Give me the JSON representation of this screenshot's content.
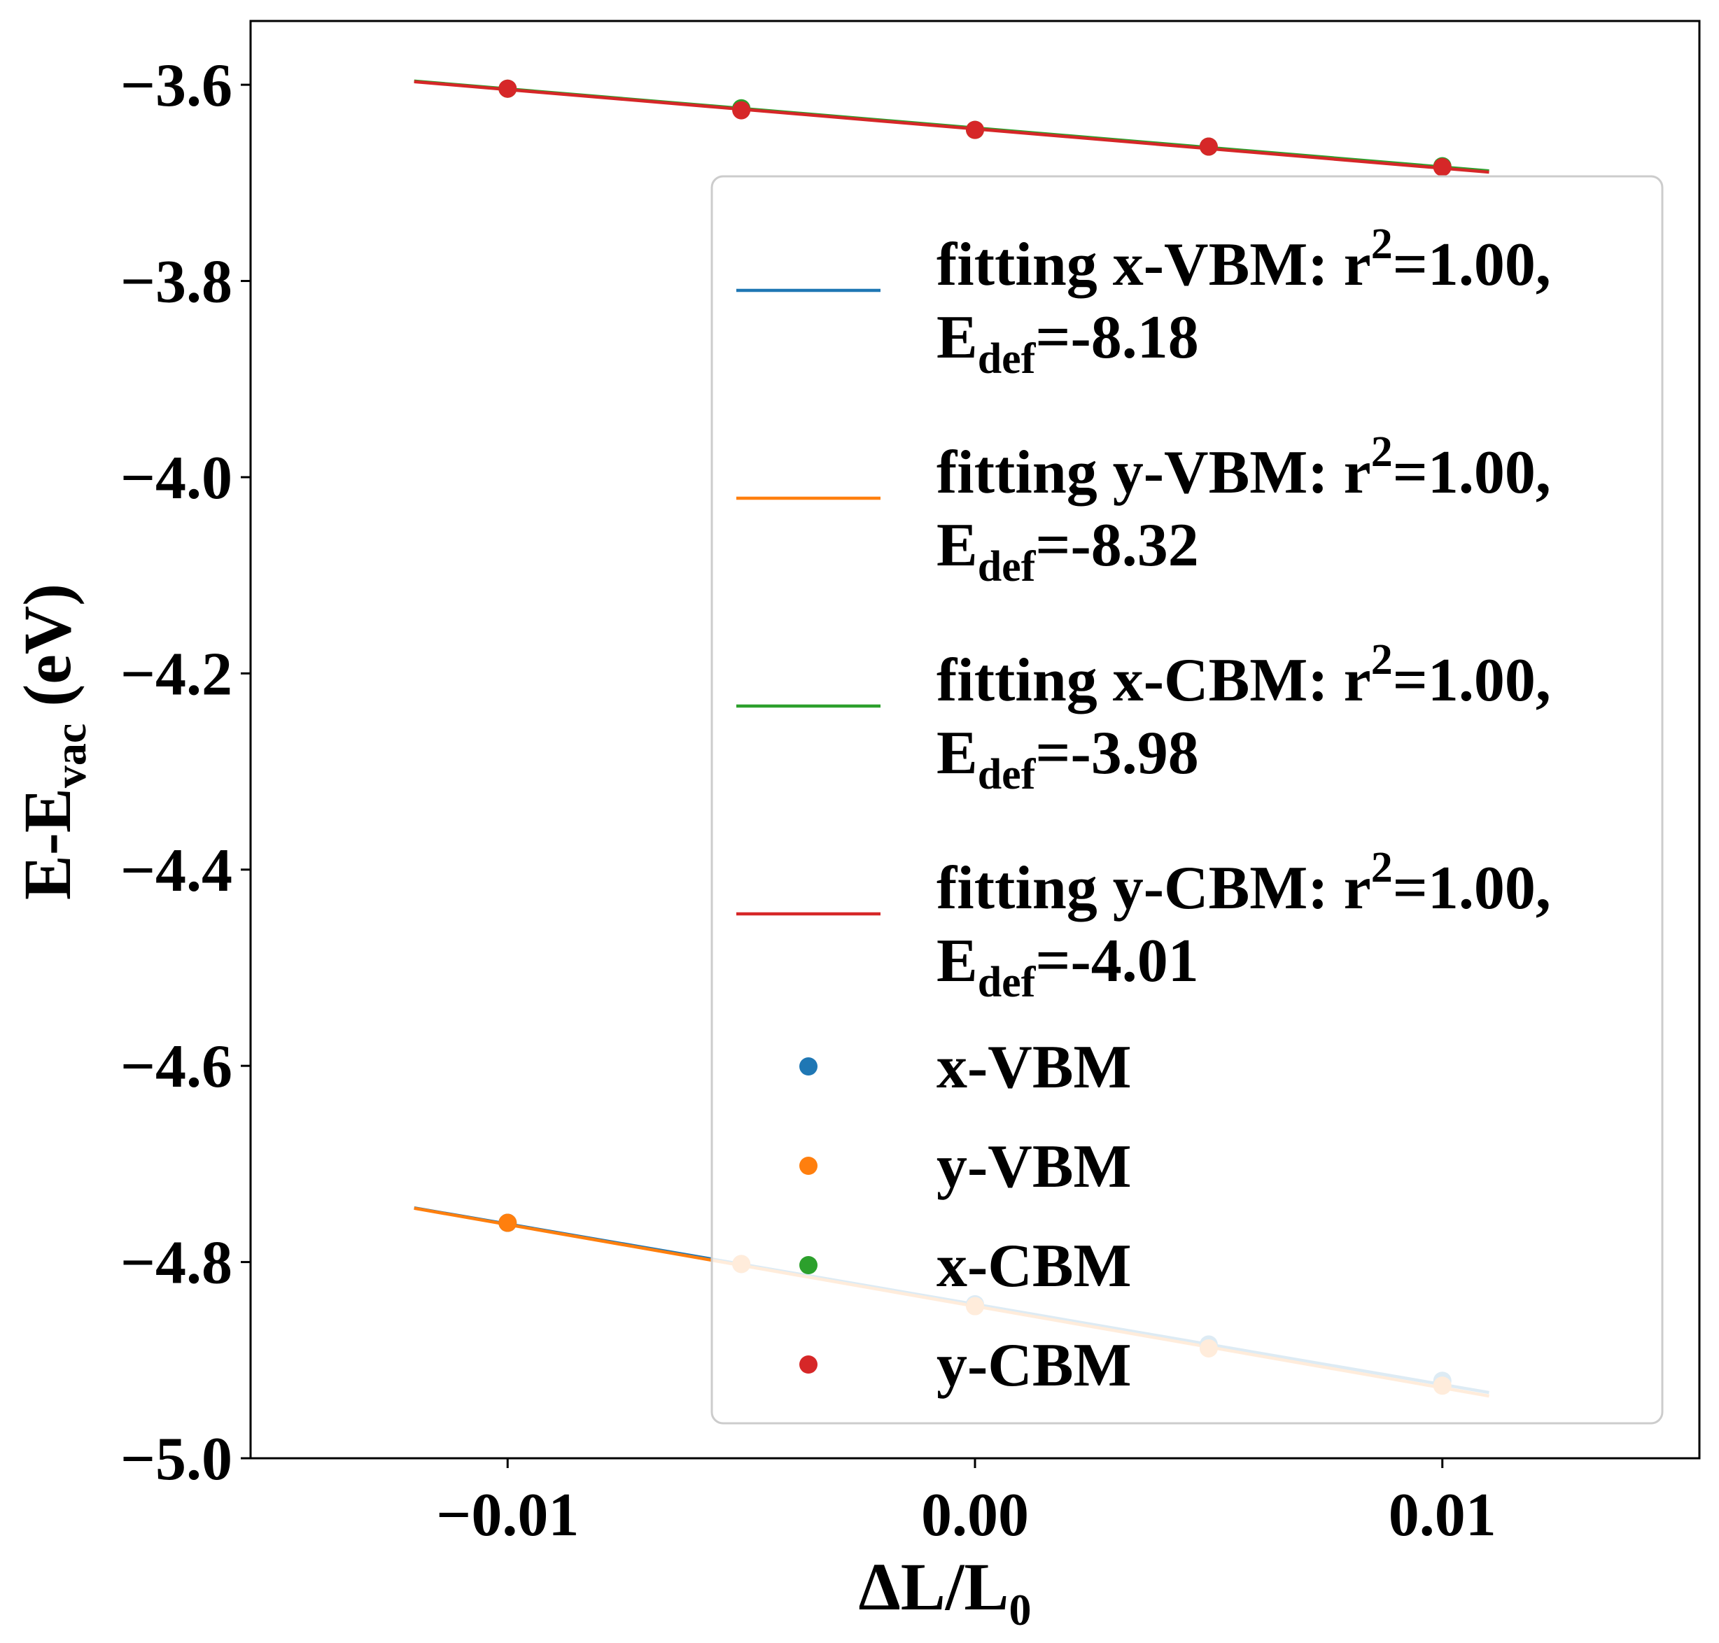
{
  "chart_data": {
    "type": "scatter",
    "xlabel": "ΔL/L",
    "xlabel_sub": "0",
    "ylabel": "E-E",
    "ylabel_sub": "vac",
    "ylabel_suffix": " (eV)",
    "xlim": [
      -0.0155,
      0.0155
    ],
    "ylim": [
      -5.0,
      -3.535
    ],
    "xticks": [
      -0.01,
      0.0,
      0.01
    ],
    "xtick_labels": [
      "−0.01",
      "0.00",
      "0.01"
    ],
    "yticks": [
      -3.6,
      -3.8,
      -4.0,
      -4.2,
      -4.4,
      -4.6,
      -4.8,
      -5.0
    ],
    "ytick_labels": [
      "−3.6",
      "−3.8",
      "−4.0",
      "−4.2",
      "−4.4",
      "−4.6",
      "−4.8",
      "−5.0"
    ],
    "grid": false,
    "legend_position": "right",
    "fit_x_range": [
      -0.012,
      0.011
    ],
    "series": [
      {
        "name": "x-VBM",
        "color": "#1f77b4",
        "x": [
          -0.01,
          -0.005,
          0.0,
          0.005,
          0.01
        ],
        "y": [
          -4.76,
          -4.802,
          -4.843,
          -4.884,
          -4.921
        ]
      },
      {
        "name": "y-VBM",
        "color": "#ff7f0e",
        "x": [
          -0.01,
          -0.005,
          0.0,
          0.005,
          0.01
        ],
        "y": [
          -4.76,
          -4.802,
          -4.845,
          -4.888,
          -4.926
        ]
      },
      {
        "name": "x-CBM",
        "color": "#2ca02c",
        "x": [
          -0.01,
          -0.005,
          0.0,
          0.005,
          0.01
        ],
        "y": [
          -3.604,
          -3.624,
          -3.646,
          -3.663,
          -3.683
        ]
      },
      {
        "name": "y-CBM",
        "color": "#d62728",
        "x": [
          -0.01,
          -0.005,
          0.0,
          0.005,
          0.01
        ],
        "y": [
          -3.604,
          -3.626,
          -3.646,
          -3.663,
          -3.684
        ]
      }
    ],
    "fits": [
      {
        "series": "x-VBM",
        "color": "#1f77b4",
        "label_line1": "fitting x-VBM: r",
        "sup": "2",
        "label_r2": "=1.00,",
        "label_line2": "E",
        "sub": "def",
        "label_edef": "=-8.18",
        "slope": -8.18,
        "intercept": -4.843
      },
      {
        "series": "y-VBM",
        "color": "#ff7f0e",
        "label_line1": "fitting y-VBM: r",
        "sup": "2",
        "label_r2": "=1.00,",
        "label_line2": "E",
        "sub": "def",
        "label_edef": "=-8.32",
        "slope": -8.32,
        "intercept": -4.845
      },
      {
        "series": "x-CBM",
        "color": "#2ca02c",
        "label_line1": "fitting x-CBM: r",
        "sup": "2",
        "label_r2": "=1.00,",
        "label_line2": "E",
        "sub": "def",
        "label_edef": "=-3.98",
        "slope": -3.98,
        "intercept": -3.644
      },
      {
        "series": "y-CBM",
        "color": "#d62728",
        "label_line1": "fitting y-CBM: r",
        "sup": "2",
        "label_r2": "=1.00,",
        "label_line2": "E",
        "sub": "def",
        "label_edef": "=-4.01",
        "slope": -4.01,
        "intercept": -3.645
      }
    ]
  }
}
